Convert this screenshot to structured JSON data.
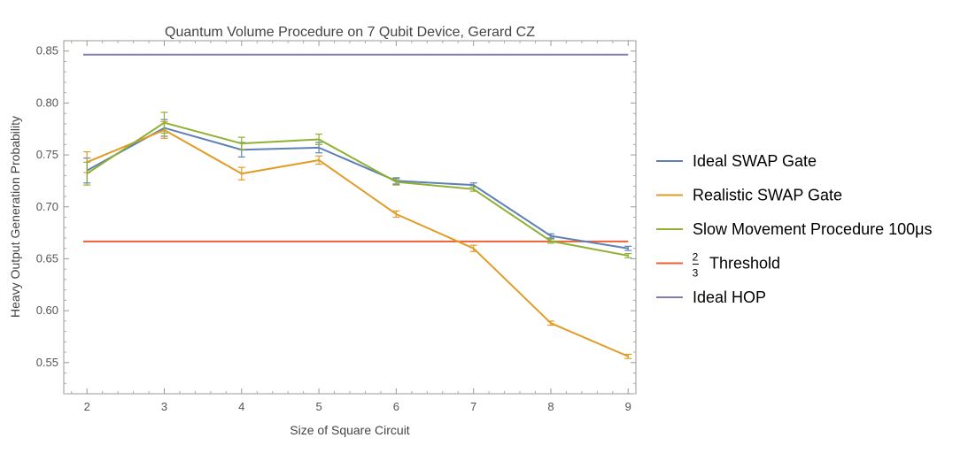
{
  "chart_data": {
    "type": "line",
    "title": "Quantum Volume Procedure on 7 Qubit Device, Gerard CZ",
    "xlabel": "Size of Square Circuit",
    "ylabel": "Heavy Output Generation Probability",
    "x": [
      2,
      3,
      4,
      5,
      6,
      7,
      8,
      9
    ],
    "xlim": [
      1.7,
      9.1
    ],
    "ylim": [
      0.52,
      0.86
    ],
    "yticks": [
      0.55,
      0.6,
      0.65,
      0.7,
      0.75,
      0.8,
      0.85
    ],
    "ytick_labels": [
      "0.55",
      "0.60",
      "0.65",
      "0.70",
      "0.75",
      "0.80",
      "0.85"
    ],
    "xtick_labels": [
      "2",
      "3",
      "4",
      "5",
      "6",
      "7",
      "8",
      "9"
    ],
    "grid": false,
    "legend_position": "right",
    "series": [
      {
        "name": "Ideal SWAP Gate",
        "color": "#5E81B5",
        "values": [
          0.735,
          0.776,
          0.755,
          0.757,
          0.725,
          0.721,
          0.672,
          0.66
        ],
        "errors": [
          0.012,
          0.008,
          0.007,
          0.005,
          0.003,
          0.002,
          0.002,
          0.002
        ]
      },
      {
        "name": "Realistic SWAP Gate",
        "color": "#E19C24",
        "values": [
          0.743,
          0.774,
          0.732,
          0.745,
          0.693,
          0.66,
          0.588,
          0.556
        ],
        "errors": [
          0.01,
          0.008,
          0.006,
          0.004,
          0.003,
          0.003,
          0.002,
          0.002
        ]
      },
      {
        "name": "Slow Movement Procedure 100μs",
        "color": "#8FB032",
        "values": [
          0.732,
          0.781,
          0.761,
          0.765,
          0.724,
          0.717,
          0.667,
          0.653
        ],
        "errors": [
          0.011,
          0.01,
          0.006,
          0.005,
          0.003,
          0.002,
          0.002,
          0.002
        ]
      },
      {
        "name": "Threshold",
        "label_prefix": {
          "num": "2",
          "den": "3"
        },
        "color": "#EB6235",
        "constant": 0.6667
      },
      {
        "name": "Ideal HOP",
        "color": "#8778B3",
        "constant": 0.8466
      }
    ]
  }
}
